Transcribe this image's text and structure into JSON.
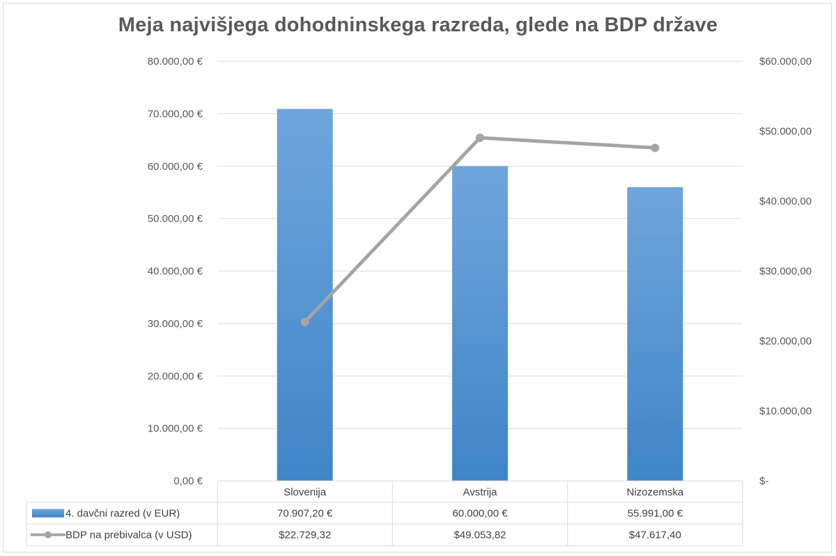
{
  "chart_data": {
    "type": "bar",
    "title": "Meja najvišjega dohodninskega razreda, glede na BDP države",
    "categories": [
      "Slovenija",
      "Avstrija",
      "Nizozemska"
    ],
    "ylim": [
      0,
      80000
    ],
    "y2lim": [
      0,
      60000
    ],
    "grid": true,
    "yticks": [
      "0,00 €",
      "10.000,00 €",
      "20.000,00 €",
      "30.000,00 €",
      "40.000,00 €",
      "50.000,00 €",
      "60.000,00 €",
      "70.000,00 €",
      "80.000,00 €"
    ],
    "y2ticks": [
      "$-",
      "$10.000,00",
      "$20.000,00",
      "$30.000,00",
      "$40.000,00",
      "$50.000,00",
      "$60.000,00"
    ],
    "series": [
      {
        "name": "4. davčni razred (v EUR)",
        "type": "bar",
        "axis": "left",
        "values": [
          70907.2,
          60000.0,
          55991.0
        ],
        "labels": [
          "70.907,20 €",
          "60.000,00 €",
          "55.991,00 €"
        ],
        "color": "#5b9bd5"
      },
      {
        "name": "BDP na prebivalca (v USD)",
        "type": "line",
        "axis": "right",
        "values": [
          22729.32,
          49053.82,
          47617.4
        ],
        "labels": [
          "$22.729,32",
          "$49.053,82",
          "$47.617,40"
        ],
        "color": "#a5a5a5"
      }
    ],
    "legend": "data-table-bottom"
  }
}
